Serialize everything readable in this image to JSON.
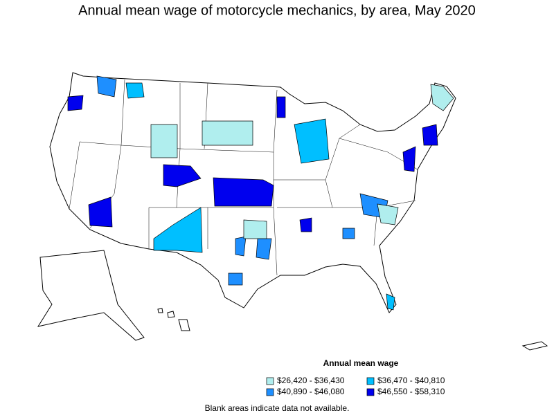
{
  "title": "Annual mean wage of motorcycle mechanics, by area, May 2020",
  "legend": {
    "title": "Annual mean wage",
    "items": [
      {
        "label": "$26,420 - $36,430",
        "color": "#b0eeee"
      },
      {
        "label": "$36,470 - $40,810",
        "color": "#00bfff"
      },
      {
        "label": "$40,890 - $46,080",
        "color": "#1e8fff"
      },
      {
        "label": "$46,550 - $58,310",
        "color": "#0000ee"
      }
    ]
  },
  "note": "Blank areas indicate data not available."
}
